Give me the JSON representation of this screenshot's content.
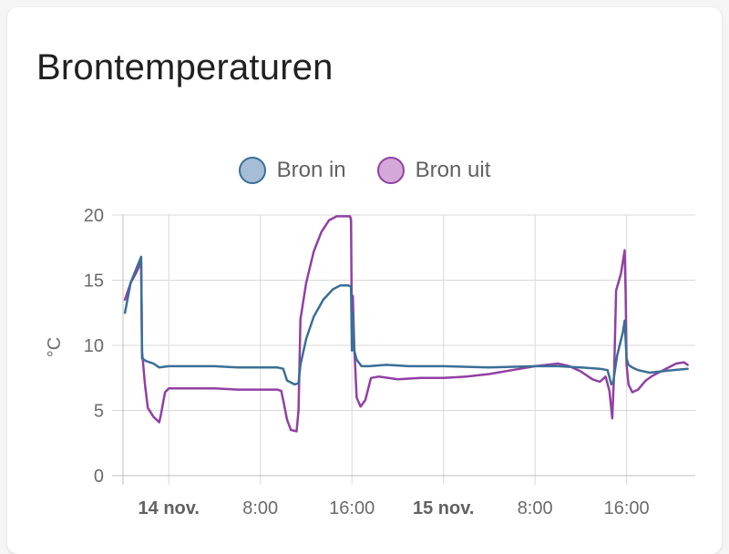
{
  "card": {
    "title": "Brontemperaturen"
  },
  "chart_data": {
    "type": "line",
    "ylabel": "°C",
    "ylim": [
      0,
      20
    ],
    "yticks": [
      0,
      5,
      10,
      15,
      20
    ],
    "xlim": [
      "2023-11-13T20:00",
      "2023-11-15T22:00"
    ],
    "xticks": [
      {
        "t": "2023-11-14T00:00",
        "label": "14 nov.",
        "bold": true
      },
      {
        "t": "2023-11-14T08:00",
        "label": "8:00",
        "bold": false
      },
      {
        "t": "2023-11-14T16:00",
        "label": "16:00",
        "bold": false
      },
      {
        "t": "2023-11-15T00:00",
        "label": "15 nov.",
        "bold": true
      },
      {
        "t": "2023-11-15T08:00",
        "label": "8:00",
        "bold": false
      },
      {
        "t": "2023-11-15T16:00",
        "label": "16:00",
        "bold": false
      }
    ],
    "grid": true,
    "legend_position": "top-center",
    "series": [
      {
        "name": "Bron in",
        "color": "#3a6f96",
        "fill": "#a6bdd6",
        "points": [
          [
            "2023-11-13T20:10",
            12.5
          ],
          [
            "2023-11-13T20:40",
            14.8
          ],
          [
            "2023-11-13T21:10",
            15.9
          ],
          [
            "2023-11-13T21:35",
            16.8
          ],
          [
            "2023-11-13T21:40",
            9.0
          ],
          [
            "2023-11-13T22:00",
            8.8
          ],
          [
            "2023-11-13T22:40",
            8.6
          ],
          [
            "2023-11-13T23:10",
            8.3
          ],
          [
            "2023-11-14T00:00",
            8.4
          ],
          [
            "2023-11-14T02:00",
            8.4
          ],
          [
            "2023-11-14T04:00",
            8.4
          ],
          [
            "2023-11-14T06:00",
            8.3
          ],
          [
            "2023-11-14T08:00",
            8.3
          ],
          [
            "2023-11-14T09:30",
            8.3
          ],
          [
            "2023-11-14T10:00",
            8.2
          ],
          [
            "2023-11-14T10:20",
            7.3
          ],
          [
            "2023-11-14T11:00",
            7.0
          ],
          [
            "2023-11-14T11:20",
            7.1
          ],
          [
            "2023-11-14T11:30",
            8.5
          ],
          [
            "2023-11-14T12:00",
            10.5
          ],
          [
            "2023-11-14T12:40",
            12.2
          ],
          [
            "2023-11-14T13:30",
            13.5
          ],
          [
            "2023-11-14T14:20",
            14.3
          ],
          [
            "2023-11-14T15:00",
            14.6
          ],
          [
            "2023-11-14T15:40",
            14.6
          ],
          [
            "2023-11-14T15:55",
            14.5
          ],
          [
            "2023-11-14T16:00",
            9.6
          ],
          [
            "2023-11-14T16:05",
            12.5
          ],
          [
            "2023-11-14T16:12",
            9.6
          ],
          [
            "2023-11-14T16:25",
            8.9
          ],
          [
            "2023-11-14T16:50",
            8.4
          ],
          [
            "2023-11-14T17:30",
            8.4
          ],
          [
            "2023-11-14T19:00",
            8.5
          ],
          [
            "2023-11-14T21:00",
            8.4
          ],
          [
            "2023-11-15T00:00",
            8.4
          ],
          [
            "2023-11-15T04:00",
            8.3
          ],
          [
            "2023-11-15T08:00",
            8.4
          ],
          [
            "2023-11-15T10:00",
            8.4
          ],
          [
            "2023-11-15T12:00",
            8.3
          ],
          [
            "2023-11-15T13:40",
            8.2
          ],
          [
            "2023-11-15T14:20",
            8.1
          ],
          [
            "2023-11-15T14:40",
            7.0
          ],
          [
            "2023-11-15T14:50",
            7.2
          ],
          [
            "2023-11-15T15:10",
            9.2
          ],
          [
            "2023-11-15T15:40",
            11.0
          ],
          [
            "2023-11-15T15:50",
            11.9
          ],
          [
            "2023-11-15T16:00",
            9.0
          ],
          [
            "2023-11-15T16:10",
            8.5
          ],
          [
            "2023-11-15T16:30",
            8.3
          ],
          [
            "2023-11-15T17:00",
            8.1
          ],
          [
            "2023-11-15T18:00",
            7.9
          ],
          [
            "2023-11-15T19:00",
            8.0
          ],
          [
            "2023-11-15T20:00",
            8.1
          ],
          [
            "2023-11-15T21:20",
            8.2
          ]
        ]
      },
      {
        "name": "Bron uit",
        "color": "#9140a3",
        "fill": "#d4a8d9",
        "points": [
          [
            "2023-11-13T20:10",
            13.5
          ],
          [
            "2023-11-13T20:40",
            14.8
          ],
          [
            "2023-11-13T21:10",
            15.6
          ],
          [
            "2023-11-13T21:35",
            16.4
          ],
          [
            "2023-11-13T21:40",
            9.5
          ],
          [
            "2023-11-13T21:55",
            7.0
          ],
          [
            "2023-11-13T22:10",
            5.2
          ],
          [
            "2023-11-13T22:40",
            4.5
          ],
          [
            "2023-11-13T23:10",
            4.1
          ],
          [
            "2023-11-13T23:20",
            4.8
          ],
          [
            "2023-11-13T23:40",
            6.4
          ],
          [
            "2023-11-14T00:00",
            6.7
          ],
          [
            "2023-11-14T02:00",
            6.7
          ],
          [
            "2023-11-14T04:00",
            6.7
          ],
          [
            "2023-11-14T06:00",
            6.6
          ],
          [
            "2023-11-14T08:00",
            6.6
          ],
          [
            "2023-11-14T09:30",
            6.6
          ],
          [
            "2023-11-14T09:50",
            6.5
          ],
          [
            "2023-11-14T10:00",
            5.8
          ],
          [
            "2023-11-14T10:20",
            4.3
          ],
          [
            "2023-11-14T10:40",
            3.5
          ],
          [
            "2023-11-14T11:10",
            3.4
          ],
          [
            "2023-11-14T11:20",
            5.0
          ],
          [
            "2023-11-14T11:30",
            12.0
          ],
          [
            "2023-11-14T12:00",
            14.8
          ],
          [
            "2023-11-14T12:40",
            17.2
          ],
          [
            "2023-11-14T13:20",
            18.7
          ],
          [
            "2023-11-14T14:00",
            19.6
          ],
          [
            "2023-11-14T14:40",
            19.9
          ],
          [
            "2023-11-14T15:50",
            19.9
          ],
          [
            "2023-11-14T15:55",
            19.6
          ],
          [
            "2023-11-14T16:00",
            11.0
          ],
          [
            "2023-11-14T16:05",
            13.8
          ],
          [
            "2023-11-14T16:12",
            10.0
          ],
          [
            "2023-11-14T16:25",
            6.0
          ],
          [
            "2023-11-14T16:45",
            5.3
          ],
          [
            "2023-11-14T17:10",
            5.8
          ],
          [
            "2023-11-14T17:40",
            7.5
          ],
          [
            "2023-11-14T18:20",
            7.6
          ],
          [
            "2023-11-14T20:00",
            7.4
          ],
          [
            "2023-11-14T22:00",
            7.5
          ],
          [
            "2023-11-15T00:00",
            7.5
          ],
          [
            "2023-11-15T02:00",
            7.6
          ],
          [
            "2023-11-15T04:00",
            7.8
          ],
          [
            "2023-11-15T06:00",
            8.1
          ],
          [
            "2023-11-15T08:00",
            8.4
          ],
          [
            "2023-11-15T10:00",
            8.6
          ],
          [
            "2023-11-15T11:00",
            8.4
          ],
          [
            "2023-11-15T12:00",
            8.0
          ],
          [
            "2023-11-15T13:00",
            7.4
          ],
          [
            "2023-11-15T13:40",
            7.2
          ],
          [
            "2023-11-15T14:10",
            7.6
          ],
          [
            "2023-11-15T14:30",
            6.5
          ],
          [
            "2023-11-15T14:45",
            4.4
          ],
          [
            "2023-11-15T14:55",
            8.0
          ],
          [
            "2023-11-15T15:05",
            14.2
          ],
          [
            "2023-11-15T15:30",
            15.5
          ],
          [
            "2023-11-15T15:50",
            17.3
          ],
          [
            "2023-11-15T15:55",
            14.0
          ],
          [
            "2023-11-15T16:00",
            8.5
          ],
          [
            "2023-11-15T16:10",
            7.0
          ],
          [
            "2023-11-15T16:30",
            6.4
          ],
          [
            "2023-11-15T17:00",
            6.6
          ],
          [
            "2023-11-15T17:40",
            7.3
          ],
          [
            "2023-11-15T18:20",
            7.7
          ],
          [
            "2023-11-15T19:00",
            8.0
          ],
          [
            "2023-11-15T19:40",
            8.3
          ],
          [
            "2023-11-15T20:20",
            8.6
          ],
          [
            "2023-11-15T21:00",
            8.7
          ],
          [
            "2023-11-15T21:20",
            8.5
          ]
        ]
      }
    ]
  }
}
